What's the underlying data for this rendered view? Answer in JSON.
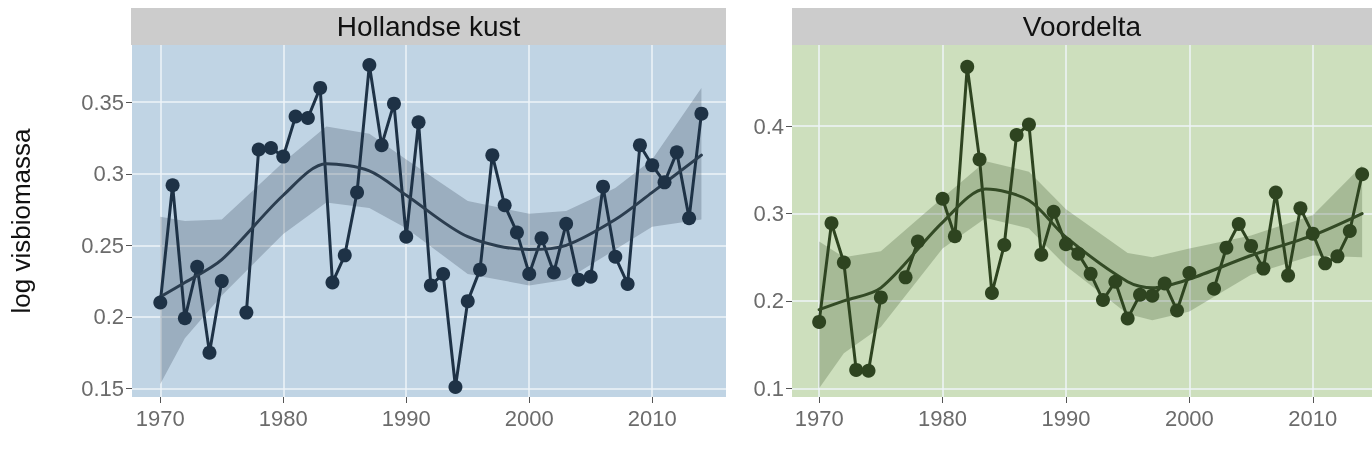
{
  "chart_data": [
    {
      "type": "line",
      "title": "Hollandse kust",
      "ylabel": "log visbiomassa",
      "xlim": [
        1967.7,
        2016
      ],
      "ylim": [
        0.144,
        0.39
      ],
      "xticks": [
        1970,
        1980,
        1990,
        2000,
        2010
      ],
      "yticks": [
        0.15,
        0.2,
        0.25,
        0.3,
        0.35
      ],
      "grid": true,
      "marker": "circle",
      "line_style": "solid",
      "series": [
        {
          "color": "#1e3246",
          "x": [
            1970,
            1971,
            1972,
            1973,
            1974,
            1975,
            1976,
            1977,
            1978,
            1979,
            1980,
            1981,
            1982,
            1983,
            1984,
            1985,
            1986,
            1987,
            1988,
            1989,
            1990,
            1991,
            1992,
            1993,
            1994,
            1995,
            1996,
            1997,
            1998,
            1999,
            2000,
            2001,
            2002,
            2003,
            2004,
            2005,
            2006,
            2007,
            2008,
            2009,
            2010,
            2011,
            2012,
            2013,
            2014
          ],
          "values": [
            0.21,
            0.292,
            0.199,
            0.235,
            0.175,
            0.225,
            null,
            0.203,
            0.317,
            0.318,
            0.312,
            0.34,
            0.339,
            0.36,
            0.224,
            0.243,
            0.287,
            0.376,
            0.32,
            0.349,
            0.256,
            0.336,
            0.222,
            0.23,
            0.151,
            0.211,
            0.233,
            0.313,
            0.278,
            0.259,
            0.23,
            0.255,
            0.231,
            0.265,
            0.226,
            0.228,
            0.291,
            0.242,
            0.223,
            0.32,
            0.306,
            0.294,
            0.315,
            0.269,
            0.342
          ]
        },
        {
          "type": "line",
          "marker": "none",
          "color": "#2b3d4f",
          "x": [
            1970,
            1972,
            1975,
            1980,
            1983.5,
            1987,
            1990,
            1995,
            2000,
            2003,
            2007,
            2010,
            2014
          ],
          "values": [
            0.214,
            0.224,
            0.24,
            0.285,
            0.307,
            0.302,
            0.285,
            0.256,
            0.247,
            0.25,
            0.268,
            0.287,
            0.313
          ],
          "lower": [
            0.153,
            0.185,
            0.215,
            0.258,
            0.28,
            0.276,
            0.262,
            0.23,
            0.222,
            0.226,
            0.247,
            0.263,
            0.268
          ],
          "upper": [
            0.27,
            0.267,
            0.268,
            0.308,
            0.333,
            0.328,
            0.31,
            0.281,
            0.272,
            0.274,
            0.29,
            0.31,
            0.36
          ]
        }
      ]
    },
    {
      "type": "line",
      "title": "Voordelta",
      "xlim": [
        1967.8,
        2014.8
      ],
      "ylim": [
        0.09,
        0.493
      ],
      "xticks": [
        1970,
        1980,
        1990,
        2000,
        2010
      ],
      "yticks": [
        0.1,
        0.2,
        0.3,
        0.4
      ],
      "grid": true,
      "marker": "circle",
      "line_style": "solid",
      "series": [
        {
          "color": "#2e4420",
          "x": [
            1970,
            1971,
            1972,
            1973,
            1974,
            1975,
            1976,
            1977,
            1978,
            1979,
            1980,
            1981,
            1982,
            1983,
            1984,
            1985,
            1986,
            1987,
            1988,
            1989,
            1990,
            1991,
            1992,
            1993,
            1994,
            1995,
            1996,
            1997,
            1998,
            1999,
            2000,
            2001,
            2002,
            2003,
            2004,
            2005,
            2006,
            2007,
            2008,
            2009,
            2010,
            2011,
            2012,
            2013,
            2014
          ],
          "values": [
            0.176,
            0.289,
            0.244,
            0.121,
            0.12,
            0.204,
            null,
            0.227,
            0.268,
            null,
            0.317,
            0.274,
            0.468,
            0.362,
            0.209,
            0.264,
            0.39,
            0.402,
            0.253,
            0.302,
            0.265,
            0.254,
            0.231,
            0.201,
            0.222,
            0.18,
            0.207,
            0.206,
            0.22,
            0.189,
            0.232,
            null,
            0.214,
            0.261,
            0.288,
            0.263,
            0.237,
            0.324,
            0.229,
            0.306,
            0.277,
            0.243,
            0.251,
            0.28,
            0.345
          ]
        },
        {
          "type": "line",
          "marker": "none",
          "color": "#334a25",
          "x": [
            1970,
            1972,
            1975,
            1980,
            1983.5,
            1987,
            1990,
            1995,
            1997,
            2000,
            2005,
            2010,
            2014
          ],
          "values": [
            0.19,
            0.2,
            0.215,
            0.29,
            0.328,
            0.315,
            0.273,
            0.222,
            0.215,
            0.225,
            0.252,
            0.275,
            0.3
          ],
          "lower": [
            0.1,
            0.14,
            0.17,
            0.26,
            0.295,
            0.283,
            0.24,
            0.185,
            0.178,
            0.188,
            0.23,
            0.252,
            0.25
          ],
          "upper": [
            0.268,
            0.25,
            0.257,
            0.318,
            0.36,
            0.348,
            0.305,
            0.255,
            0.25,
            0.26,
            0.275,
            0.298,
            0.355
          ]
        }
      ]
    }
  ]
}
